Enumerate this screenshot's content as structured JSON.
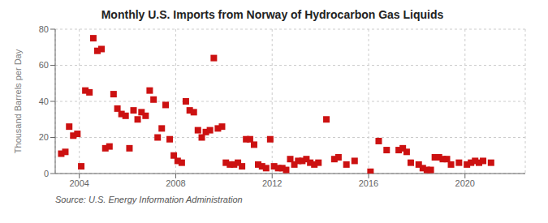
{
  "chart_data": {
    "type": "scatter",
    "title": "Monthly U.S. Imports from Norway of Hydrocarbon Gas Liquids",
    "ylabel": "Thousand Barrels per Day",
    "annotation": "Source: U.S. Energy Information Administration",
    "color": "#cc1111",
    "marker": "square",
    "grid": true,
    "xlim": [
      2003.0,
      2022.5
    ],
    "xticks": [
      2004,
      2008,
      2012,
      2016,
      2020
    ],
    "ylim": [
      0,
      80
    ],
    "yticks": [
      0,
      20,
      40,
      60,
      80
    ],
    "x": [
      2003.25,
      2003.42,
      2003.58,
      2003.75,
      2003.92,
      2004.08,
      2004.25,
      2004.42,
      2004.58,
      2004.75,
      2004.92,
      2005.08,
      2005.25,
      2005.42,
      2005.58,
      2005.75,
      2005.92,
      2006.08,
      2006.25,
      2006.42,
      2006.58,
      2006.75,
      2006.92,
      2007.08,
      2007.25,
      2007.42,
      2007.58,
      2007.75,
      2007.92,
      2008.08,
      2008.25,
      2008.42,
      2008.58,
      2008.75,
      2008.92,
      2009.08,
      2009.25,
      2009.42,
      2009.58,
      2009.75,
      2009.92,
      2010.08,
      2010.25,
      2010.42,
      2010.58,
      2010.75,
      2010.92,
      2011.08,
      2011.25,
      2011.42,
      2011.58,
      2011.75,
      2011.92,
      2012.08,
      2012.25,
      2012.42,
      2012.58,
      2012.75,
      2012.92,
      2013.08,
      2013.25,
      2013.42,
      2013.58,
      2013.75,
      2013.92,
      2014.25,
      2014.58,
      2014.75,
      2015.08,
      2015.42,
      2016.08,
      2016.42,
      2016.75,
      2017.25,
      2017.42,
      2017.58,
      2017.75,
      2018.08,
      2018.25,
      2018.42,
      2018.58,
      2018.75,
      2018.92,
      2019.08,
      2019.25,
      2019.42,
      2019.75,
      2020.08,
      2020.25,
      2020.42,
      2020.58,
      2020.75,
      2021.08
    ],
    "values": [
      11,
      12,
      26,
      21,
      22,
      4,
      46,
      45,
      75,
      68,
      69,
      14,
      15,
      44,
      36,
      33,
      32,
      14,
      35,
      30,
      34,
      32,
      46,
      41,
      20,
      25,
      38,
      19,
      10,
      7,
      6,
      40,
      35,
      34,
      24,
      20,
      23,
      24,
      64,
      25,
      26,
      6,
      5,
      5,
      6,
      4,
      19,
      19,
      16,
      5,
      4,
      3,
      19,
      4,
      3,
      3,
      2,
      8,
      5,
      7,
      7,
      8,
      6,
      5,
      6,
      30,
      8,
      9,
      5,
      7,
      1,
      18,
      13,
      13,
      14,
      12,
      6,
      5,
      3,
      2,
      2,
      9,
      9,
      8,
      8,
      5,
      6,
      5,
      6,
      7,
      6,
      7,
      6
    ]
  }
}
